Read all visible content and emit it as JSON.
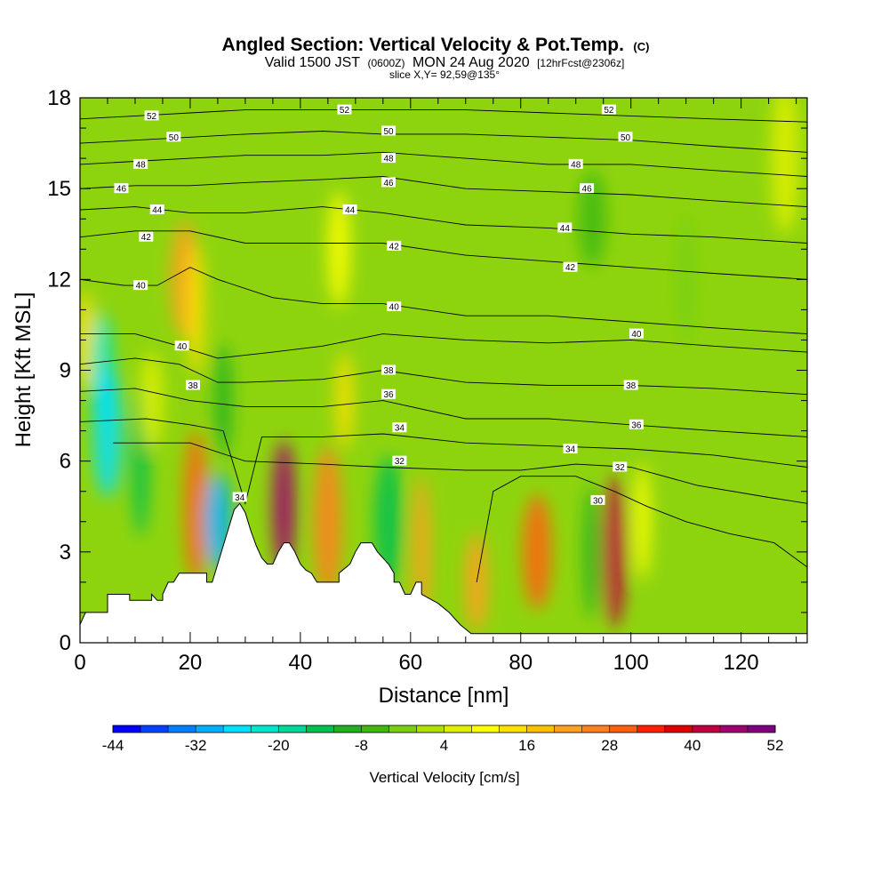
{
  "title": {
    "main": "Angled Section: Vertical Velocity & Pot.Temp.",
    "main_units": "(C)",
    "valid_a": "Valid 1500 JST",
    "valid_b": "(0600Z)",
    "valid_c": "MON 24 Aug 2020",
    "valid_d": "[12hrFcst@2306z]",
    "slice": "slice X,Y= 92,59@135°"
  },
  "chart_data": {
    "type": "heatmap",
    "xlabel": "Distance [nm]",
    "ylabel": "Height [Kft MSL]",
    "xlim": [
      0,
      132
    ],
    "ylim": [
      0,
      18
    ],
    "x_ticks": [
      0,
      20,
      40,
      60,
      80,
      100,
      120
    ],
    "y_ticks": [
      0,
      3,
      6,
      9,
      12,
      15,
      18
    ],
    "colorbar": {
      "title": "Vertical Velocity [cm/s]",
      "levels": [
        -44,
        -32,
        -20,
        -8,
        4,
        16,
        28,
        40,
        52
      ],
      "colors": [
        "#0000ff",
        "#0040ff",
        "#0080ff",
        "#00b0ff",
        "#00e0ff",
        "#00e6cc",
        "#00d999",
        "#00c050",
        "#20b020",
        "#40b810",
        "#7ad010",
        "#b0e000",
        "#e0f000",
        "#ffff00",
        "#ffe000",
        "#ffc000",
        "#ffa020",
        "#ff8020",
        "#ff6010",
        "#ff2000",
        "#e00000",
        "#c00040",
        "#a00070",
        "#800080"
      ]
    },
    "velocity_features": [
      {
        "x": 1,
        "y": 10,
        "v": 12
      },
      {
        "x": 4,
        "y": 9,
        "v": -24
      },
      {
        "x": 5,
        "y": 7,
        "v": -28
      },
      {
        "x": 11,
        "y": 6,
        "v": -14
      },
      {
        "x": 13,
        "y": 8,
        "v": 6
      },
      {
        "x": 19,
        "y": 12,
        "v": 22
      },
      {
        "x": 21,
        "y": 11,
        "v": 14
      },
      {
        "x": 21,
        "y": 4.5,
        "v": 30
      },
      {
        "x": 25,
        "y": 4,
        "v": -32
      },
      {
        "x": 26,
        "y": 8,
        "v": -10
      },
      {
        "x": 37,
        "y": 4.5,
        "v": 46
      },
      {
        "x": 45,
        "y": 4,
        "v": 26
      },
      {
        "x": 48,
        "y": 8,
        "v": 14
      },
      {
        "x": 47,
        "y": 13,
        "v": 8
      },
      {
        "x": 56,
        "y": 4,
        "v": -14
      },
      {
        "x": 62,
        "y": 3,
        "v": 22
      },
      {
        "x": 72,
        "y": 2,
        "v": 20
      },
      {
        "x": 83,
        "y": 3,
        "v": 28
      },
      {
        "x": 93,
        "y": 3,
        "v": -12
      },
      {
        "x": 97,
        "y": 3,
        "v": 40
      },
      {
        "x": 93,
        "y": 14,
        "v": -6
      },
      {
        "x": 102,
        "y": 4,
        "v": 10
      },
      {
        "x": 110,
        "y": 12,
        "v": -4
      },
      {
        "x": 128,
        "y": 16,
        "v": 6
      }
    ],
    "terrain": [
      [
        0,
        0.6
      ],
      [
        1,
        1
      ],
      [
        5,
        1
      ],
      [
        5,
        1.6
      ],
      [
        9,
        1.6
      ],
      [
        9,
        1.4
      ],
      [
        13,
        1.4
      ],
      [
        13,
        1.6
      ],
      [
        14,
        1.4
      ],
      [
        15,
        1.4
      ],
      [
        15,
        1.6
      ],
      [
        16,
        2
      ],
      [
        17,
        2
      ],
      [
        18,
        2.3
      ],
      [
        23,
        2.3
      ],
      [
        23,
        2
      ],
      [
        24,
        2
      ],
      [
        25,
        2.6
      ],
      [
        26,
        3.2
      ],
      [
        27,
        3.8
      ],
      [
        28,
        4.4
      ],
      [
        29,
        4.6
      ],
      [
        30,
        4.3
      ],
      [
        31,
        3.7
      ],
      [
        32,
        3.2
      ],
      [
        33,
        2.8
      ],
      [
        34,
        2.6
      ],
      [
        35,
        2.6
      ],
      [
        36,
        3
      ],
      [
        37,
        3.3
      ],
      [
        38,
        3.3
      ],
      [
        39,
        3
      ],
      [
        40,
        2.6
      ],
      [
        41,
        2.4
      ],
      [
        42,
        2.3
      ],
      [
        43,
        2
      ],
      [
        47,
        2
      ],
      [
        47,
        2.3
      ],
      [
        49,
        2.6
      ],
      [
        50,
        3
      ],
      [
        51,
        3.3
      ],
      [
        53,
        3.3
      ],
      [
        54,
        3
      ],
      [
        56,
        2.6
      ],
      [
        57,
        2.3
      ],
      [
        57,
        2
      ],
      [
        58,
        2
      ],
      [
        59,
        1.6
      ],
      [
        60,
        1.6
      ],
      [
        61,
        2
      ],
      [
        62,
        2
      ],
      [
        62,
        1.6
      ],
      [
        65,
        1.3
      ],
      [
        67,
        1
      ],
      [
        69,
        0.6
      ],
      [
        71,
        0.3
      ],
      [
        132,
        0.3
      ]
    ],
    "isentropes": [
      {
        "level": 30,
        "points": [
          [
            72,
            2
          ],
          [
            75,
            5
          ],
          [
            80,
            5.5
          ],
          [
            90,
            5.5
          ],
          [
            97,
            5
          ],
          [
            103,
            4.5
          ],
          [
            110,
            4
          ],
          [
            118,
            3.6
          ],
          [
            126,
            3.3
          ],
          [
            132,
            2.5
          ]
        ],
        "labels": [
          {
            "x": 94,
            "y": 4.7
          }
        ]
      },
      {
        "level": 32,
        "points": [
          [
            6,
            6.6
          ],
          [
            20,
            6.6
          ],
          [
            30,
            6
          ],
          [
            44,
            5.9
          ],
          [
            55,
            5.8
          ],
          [
            70,
            5.7
          ],
          [
            80,
            5.7
          ],
          [
            90,
            5.9
          ],
          [
            100,
            5.8
          ],
          [
            112,
            5.2
          ],
          [
            125,
            4.8
          ],
          [
            132,
            4.6
          ]
        ],
        "labels": [
          {
            "x": 58,
            "y": 6
          },
          {
            "x": 98,
            "y": 5.8
          }
        ]
      },
      {
        "level": 34,
        "points": [
          [
            0,
            7.3
          ],
          [
            12,
            7.4
          ],
          [
            20,
            7.2
          ],
          [
            26,
            7
          ],
          [
            30,
            4.6
          ],
          [
            33,
            6.8
          ],
          [
            44,
            6.8
          ],
          [
            55,
            6.9
          ],
          [
            70,
            6.6
          ],
          [
            85,
            6.5
          ],
          [
            100,
            6.4
          ],
          [
            115,
            6.2
          ],
          [
            132,
            5.8
          ]
        ],
        "labels": [
          {
            "x": 58,
            "y": 7.1
          },
          {
            "x": 89,
            "y": 6.4
          },
          {
            "x": 29,
            "y": 4.8
          }
        ]
      },
      {
        "level": 36,
        "points": [
          [
            0,
            8.3
          ],
          [
            10,
            8.4
          ],
          [
            20,
            8
          ],
          [
            30,
            7.8
          ],
          [
            44,
            7.8
          ],
          [
            55,
            8
          ],
          [
            70,
            7.4
          ],
          [
            85,
            7.4
          ],
          [
            100,
            7.2
          ],
          [
            115,
            7
          ],
          [
            132,
            6.8
          ]
        ],
        "labels": [
          {
            "x": 56,
            "y": 8.2
          },
          {
            "x": 101,
            "y": 7.2
          }
        ]
      },
      {
        "level": 38,
        "points": [
          [
            0,
            9.2
          ],
          [
            10,
            9.4
          ],
          [
            18,
            9.2
          ],
          [
            25,
            8.6
          ],
          [
            30,
            8.6
          ],
          [
            44,
            8.7
          ],
          [
            55,
            9
          ],
          [
            70,
            8.6
          ],
          [
            85,
            8.5
          ],
          [
            100,
            8.5
          ],
          [
            115,
            8.4
          ],
          [
            132,
            8.2
          ]
        ],
        "labels": [
          {
            "x": 56,
            "y": 9
          },
          {
            "x": 100,
            "y": 8.5
          },
          {
            "x": 20.5,
            "y": 8.5
          }
        ]
      },
      {
        "level": 40,
        "points": [
          [
            0,
            10.2
          ],
          [
            10,
            10.2
          ],
          [
            18,
            9.8
          ],
          [
            25,
            9.4
          ],
          [
            35,
            9.6
          ],
          [
            44,
            9.8
          ],
          [
            55,
            10.2
          ],
          [
            70,
            10
          ],
          [
            85,
            9.9
          ],
          [
            100,
            10
          ],
          [
            115,
            9.8
          ],
          [
            132,
            9.6
          ]
        ],
        "labels": [
          {
            "x": 18.5,
            "y": 9.8
          },
          {
            "x": 101,
            "y": 10.2
          }
        ]
      },
      {
        "level": 40,
        "points": [
          [
            0,
            12
          ],
          [
            8,
            11.8
          ],
          [
            14,
            11.8
          ],
          [
            20,
            12.4
          ],
          [
            25,
            12
          ],
          [
            35,
            11.4
          ],
          [
            44,
            11.2
          ],
          [
            55,
            11.2
          ],
          [
            70,
            10.8
          ],
          [
            85,
            10.8
          ],
          [
            100,
            10.6
          ],
          [
            115,
            10.4
          ],
          [
            132,
            10.2
          ]
        ],
        "labels": [
          {
            "x": 11,
            "y": 11.8
          },
          {
            "x": 57,
            "y": 11.1
          }
        ]
      },
      {
        "level": 42,
        "points": [
          [
            0,
            13.4
          ],
          [
            10,
            13.6
          ],
          [
            20,
            13.6
          ],
          [
            30,
            13.2
          ],
          [
            44,
            13.2
          ],
          [
            55,
            13.2
          ],
          [
            70,
            12.8
          ],
          [
            85,
            12.6
          ],
          [
            100,
            12.4
          ],
          [
            115,
            12.2
          ],
          [
            132,
            12
          ]
        ],
        "labels": [
          {
            "x": 12,
            "y": 13.4
          },
          {
            "x": 57,
            "y": 13.1
          },
          {
            "x": 89,
            "y": 12.4
          }
        ]
      },
      {
        "level": 44,
        "points": [
          [
            0,
            14.3
          ],
          [
            10,
            14.4
          ],
          [
            20,
            14.2
          ],
          [
            30,
            14.2
          ],
          [
            44,
            14.4
          ],
          [
            55,
            14.2
          ],
          [
            70,
            13.8
          ],
          [
            85,
            13.7
          ],
          [
            100,
            13.5
          ],
          [
            115,
            13.4
          ],
          [
            132,
            13.2
          ]
        ],
        "labels": [
          {
            "x": 14,
            "y": 14.3
          },
          {
            "x": 49,
            "y": 14.3
          },
          {
            "x": 88,
            "y": 13.7
          }
        ]
      },
      {
        "level": 46,
        "points": [
          [
            0,
            15
          ],
          [
            10,
            15.1
          ],
          [
            20,
            15.1
          ],
          [
            30,
            15.2
          ],
          [
            44,
            15.3
          ],
          [
            55,
            15.4
          ],
          [
            70,
            15
          ],
          [
            85,
            14.9
          ],
          [
            100,
            14.8
          ],
          [
            115,
            14.6
          ],
          [
            132,
            14.4
          ]
        ],
        "labels": [
          {
            "x": 7.5,
            "y": 15
          },
          {
            "x": 56,
            "y": 15.2
          },
          {
            "x": 92,
            "y": 15
          }
        ]
      },
      {
        "level": 48,
        "points": [
          [
            0,
            15.8
          ],
          [
            10,
            15.9
          ],
          [
            20,
            16
          ],
          [
            30,
            16.1
          ],
          [
            44,
            16.1
          ],
          [
            55,
            16.2
          ],
          [
            70,
            16
          ],
          [
            85,
            15.8
          ],
          [
            100,
            15.8
          ],
          [
            115,
            15.6
          ],
          [
            132,
            15.4
          ]
        ],
        "labels": [
          {
            "x": 11,
            "y": 15.8
          },
          {
            "x": 56,
            "y": 16
          },
          {
            "x": 90,
            "y": 15.8
          }
        ]
      },
      {
        "level": 50,
        "points": [
          [
            0,
            16.5
          ],
          [
            10,
            16.6
          ],
          [
            20,
            16.7
          ],
          [
            30,
            16.8
          ],
          [
            44,
            16.9
          ],
          [
            55,
            16.8
          ],
          [
            70,
            16.8
          ],
          [
            85,
            16.7
          ],
          [
            100,
            16.6
          ],
          [
            115,
            16.4
          ],
          [
            132,
            16.2
          ]
        ],
        "labels": [
          {
            "x": 17,
            "y": 16.7
          },
          {
            "x": 56,
            "y": 16.9
          },
          {
            "x": 99,
            "y": 16.7
          }
        ]
      },
      {
        "level": 52,
        "points": [
          [
            0,
            17.3
          ],
          [
            10,
            17.4
          ],
          [
            20,
            17.5
          ],
          [
            30,
            17.6
          ],
          [
            44,
            17.6
          ],
          [
            55,
            17.6
          ],
          [
            70,
            17.6
          ],
          [
            85,
            17.5
          ],
          [
            100,
            17.4
          ],
          [
            115,
            17.3
          ],
          [
            132,
            17.2
          ]
        ],
        "labels": [
          {
            "x": 13,
            "y": 17.4
          },
          {
            "x": 48,
            "y": 17.6
          },
          {
            "x": 96,
            "y": 17.6
          }
        ]
      }
    ]
  }
}
